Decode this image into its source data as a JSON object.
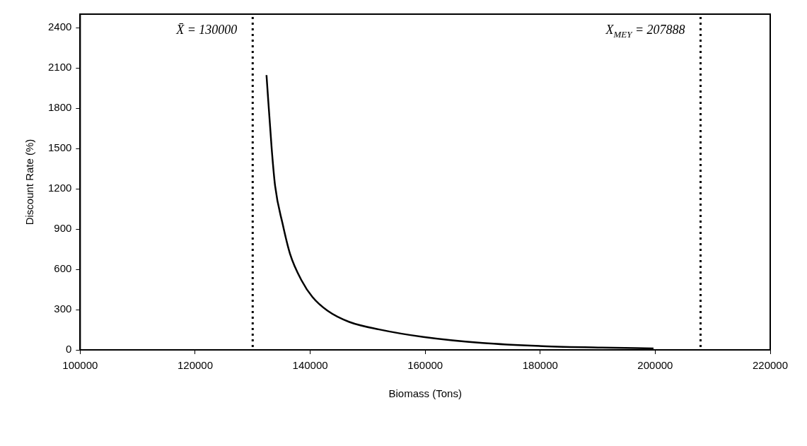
{
  "chart_data": {
    "type": "line",
    "xlabel": "Biomass (Tons)",
    "ylabel": "Discount Rate (%)",
    "x": [
      132400,
      133300,
      133900,
      135200,
      136500,
      138500,
      140400,
      143000,
      146800,
      152000,
      159700,
      170000,
      180400,
      190700,
      199700
    ],
    "series": [
      {
        "color": "#000000",
        "values": [
          2046,
          1500,
          1220,
          939,
          714,
          517,
          393,
          292,
          208,
          152,
          96,
          51,
          28,
          17,
          11
        ]
      }
    ],
    "xlim": [
      100000,
      220000
    ],
    "xticks": [
      100000,
      120000,
      140000,
      160000,
      180000,
      200000,
      220000
    ],
    "ylim": [
      0,
      2500
    ],
    "yticks": [
      0,
      300,
      600,
      900,
      1200,
      1500,
      1800,
      2100,
      2400
    ],
    "ref_lines": [
      {
        "axis": "x",
        "value": 130000,
        "label": "X̄ = 130000",
        "line_style": "dotted",
        "color": "#000000"
      },
      {
        "axis": "x",
        "value": 207888,
        "label": "X$_{MEY}$ = 207888",
        "line_style": "dotted",
        "color": "#000000"
      }
    ],
    "grid": false,
    "legend": false,
    "marker": "none",
    "line_style": "solid"
  }
}
